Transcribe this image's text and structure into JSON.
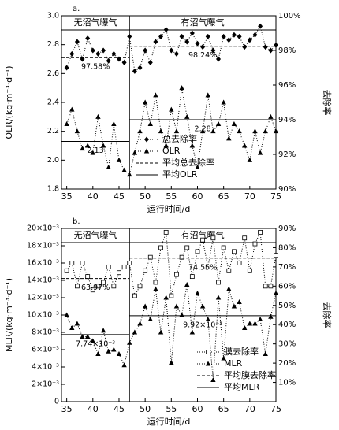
{
  "chart_data": [
    {
      "type": "line",
      "panel_label": "a.",
      "xlabel": "运行时间/d",
      "ylabel": "OLR/(kg·m⁻³·d⁻¹)",
      "y2label": "去除率",
      "xlim": [
        34,
        75
      ],
      "xticks": [
        35,
        40,
        45,
        50,
        55,
        60,
        65,
        70,
        75
      ],
      "ylim": [
        1.8,
        3.0
      ],
      "yticks": [
        1.8,
        {
          "value": 2,
          "label": "2.0"
        },
        2.2,
        2.4,
        2.6,
        2.8,
        {
          "value": 3,
          "label": "3.0"
        }
      ],
      "y2lim": [
        90,
        100
      ],
      "y2ticks": [
        {
          "value": 90,
          "label": "90%"
        },
        {
          "value": 92,
          "label": "92%"
        },
        {
          "value": 94,
          "label": "94%"
        },
        {
          "value": 96,
          "label": "96%"
        },
        {
          "value": 98,
          "label": "98%"
        },
        {
          "value": 100,
          "label": "100%"
        }
      ],
      "phases": [
        {
          "label": "无沼气曝气"
        },
        {
          "label": "有沼气曝气"
        }
      ],
      "boundary": 47,
      "legend": "lower center",
      "color": "#000000",
      "x": [
        35,
        36,
        37,
        38,
        39,
        40,
        41,
        42,
        43,
        44,
        45,
        46,
        47,
        48,
        49,
        50,
        51,
        52,
        53,
        54,
        55,
        56,
        57,
        58,
        59,
        60,
        61,
        62,
        63,
        64,
        65,
        66,
        67,
        68,
        69,
        70,
        71,
        72,
        73,
        74,
        75
      ],
      "series": [
        {
          "name": "总去除率",
          "axis": "y2",
          "marker": "diamond",
          "values": [
            97.0,
            97.8,
            98.5,
            97.5,
            98.7,
            98.0,
            97.8,
            98.0,
            97.4,
            97.8,
            97.5,
            97.3,
            98.8,
            96.8,
            97.0,
            98.0,
            97.3,
            98.5,
            98.8,
            99.2,
            98.0,
            97.8,
            98.8,
            98.5,
            99.0,
            98.4,
            98.2,
            98.8,
            98.0,
            97.5,
            98.8,
            98.6,
            98.9,
            98.8,
            98.2,
            98.6,
            98.9,
            99.4,
            98.2,
            98.0,
            98.3
          ]
        },
        {
          "name": "OLR",
          "axis": "y",
          "marker": "triangle",
          "values": [
            2.25,
            2.35,
            2.2,
            2.08,
            2.1,
            2.05,
            2.3,
            2.1,
            1.95,
            2.25,
            2.0,
            1.93,
            1.9,
            2.05,
            2.2,
            2.4,
            2.25,
            2.45,
            2.2,
            2.1,
            2.35,
            2.2,
            2.5,
            2.3,
            2.1,
            1.95,
            2.2,
            2.45,
            2.2,
            2.25,
            2.4,
            2.15,
            2.25,
            2.2,
            2.1,
            2.0,
            2.2,
            2.05,
            2.2,
            2.3,
            2.2
          ]
        }
      ],
      "mean_lines": [
        {
          "name": "平均总去除率",
          "axis": "y2",
          "style": "dashed",
          "segments": [
            {
              "x": [
                34,
                47
              ],
              "value": 97.58,
              "label": "97.58%"
            },
            {
              "x": [
                47,
                75
              ],
              "value": 98.24,
              "label": "98.24%"
            }
          ]
        },
        {
          "name": "平均OLR",
          "axis": "y",
          "style": "solid",
          "segments": [
            {
              "x": [
                34,
                47
              ],
              "value": 2.13,
              "label": "2.13"
            },
            {
              "x": [
                47,
                75
              ],
              "value": 2.28,
              "label": "2.28"
            }
          ]
        }
      ]
    },
    {
      "type": "line",
      "panel_label": "b.",
      "xlabel": "运行时间/d",
      "ylabel": "MLR/(kg·m⁻³·d⁻¹)",
      "y2label": "去除率",
      "xlim": [
        34,
        75
      ],
      "xticks": [
        35,
        40,
        45,
        50,
        55,
        60,
        65,
        70,
        75
      ],
      "ylim": [
        0,
        0.02
      ],
      "yticks": [
        0,
        {
          "value": 0.002,
          "label": "2×10⁻³"
        },
        {
          "value": 0.004,
          "label": "4×10⁻³"
        },
        {
          "value": 0.006,
          "label": "6×10⁻³"
        },
        {
          "value": 0.008,
          "label": "8×10⁻³"
        },
        {
          "value": 0.01,
          "label": "10×10⁻³"
        },
        {
          "value": 0.012,
          "label": "12×10⁻³"
        },
        {
          "value": 0.014,
          "label": "14×10⁻³"
        },
        {
          "value": 0.016,
          "label": "16×10⁻³"
        },
        {
          "value": 0.018,
          "label": "18×10⁻³"
        },
        {
          "value": 0.02,
          "label": "20×10⁻³"
        }
      ],
      "y2lim": [
        0,
        90
      ],
      "y2ticks": [
        {
          "value": 10,
          "label": "10%"
        },
        {
          "value": 20,
          "label": "20%"
        },
        {
          "value": 30,
          "label": "30%"
        },
        {
          "value": 40,
          "label": "40%"
        },
        {
          "value": 50,
          "label": "50%"
        },
        {
          "value": 60,
          "label": "60%"
        },
        {
          "value": 70,
          "label": "70%"
        },
        {
          "value": 80,
          "label": "80%"
        },
        {
          "value": 90,
          "label": "90%"
        }
      ],
      "phases": [
        {
          "label": "无沼气曝气"
        },
        {
          "label": "有沼气曝气"
        }
      ],
      "boundary": 47,
      "legend": "lower right",
      "color": "#000000",
      "x": [
        35,
        36,
        37,
        38,
        39,
        40,
        41,
        42,
        43,
        44,
        45,
        46,
        47,
        48,
        49,
        50,
        51,
        52,
        53,
        54,
        55,
        56,
        57,
        58,
        59,
        60,
        61,
        62,
        63,
        64,
        65,
        66,
        67,
        68,
        69,
        70,
        71,
        72,
        73,
        74,
        75
      ],
      "series": [
        {
          "name": "膜去除率",
          "axis": "y2",
          "marker": "square",
          "values": [
            68,
            72,
            60,
            72,
            65,
            58,
            60,
            62,
            70,
            60,
            67,
            70,
            72,
            55,
            60,
            68,
            75,
            62,
            80,
            88,
            55,
            66,
            75,
            80,
            65,
            78,
            84,
            70,
            85,
            62,
            80,
            68,
            78,
            72,
            85,
            68,
            82,
            88,
            60,
            60,
            76
          ]
        },
        {
          "name": "MLR",
          "axis": "y",
          "marker": "triangle",
          "values": [
            0.01,
            0.0085,
            0.009,
            0.0075,
            0.0075,
            0.007,
            0.0055,
            0.0082,
            0.0058,
            0.006,
            0.0055,
            0.0042,
            0.0068,
            0.008,
            0.009,
            0.011,
            0.0095,
            0.013,
            0.008,
            0.012,
            0.0045,
            0.011,
            0.01,
            0.0135,
            0.008,
            0.0125,
            0.011,
            0.0095,
            0.0025,
            0.012,
            0.005,
            0.013,
            0.011,
            0.0115,
            0.0085,
            0.009,
            0.009,
            0.0095,
            0.0055,
            0.0098,
            0.0125
          ]
        }
      ],
      "mean_lines": [
        {
          "name": "平均膜去除率",
          "axis": "y2",
          "style": "dashed",
          "segments": [
            {
              "x": [
                34,
                47
              ],
              "value": 63.97,
              "label": "63.97%"
            },
            {
              "x": [
                47,
                75
              ],
              "value": 74.55,
              "label": "74.55%"
            }
          ]
        },
        {
          "name": "平均MLR",
          "axis": "y",
          "style": "solid",
          "segments": [
            {
              "x": [
                34,
                47
              ],
              "value": 0.00774,
              "label": "7.74×10⁻³"
            },
            {
              "x": [
                47,
                75
              ],
              "value": 0.00992,
              "label": "9.92×10⁻³"
            }
          ]
        }
      ]
    }
  ]
}
